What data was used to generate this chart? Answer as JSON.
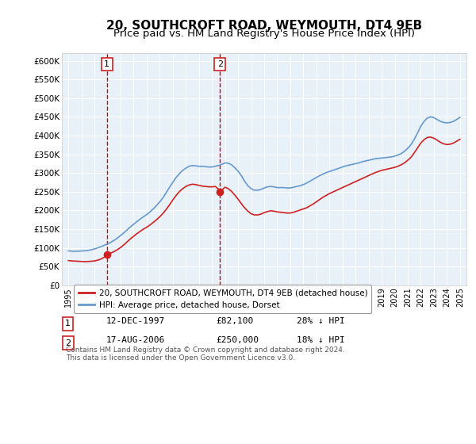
{
  "title": "20, SOUTHCROFT ROAD, WEYMOUTH, DT4 9EB",
  "subtitle": "Price paid vs. HM Land Registry's House Price Index (HPI)",
  "title_fontsize": 11,
  "subtitle_fontsize": 9.5,
  "ylabel": "",
  "xlabel": "",
  "ylim": [
    0,
    620000
  ],
  "yticks": [
    0,
    50000,
    100000,
    150000,
    200000,
    250000,
    300000,
    350000,
    400000,
    450000,
    500000,
    550000,
    600000
  ],
  "ytick_labels": [
    "£0",
    "£50K",
    "£100K",
    "£150K",
    "£200K",
    "£250K",
    "£300K",
    "£350K",
    "£400K",
    "£450K",
    "£500K",
    "£550K",
    "£600K"
  ],
  "xlim_start": 1994.5,
  "xlim_end": 2025.5,
  "xtick_years": [
    1995,
    1996,
    1997,
    1998,
    1999,
    2000,
    2001,
    2002,
    2003,
    2004,
    2005,
    2006,
    2007,
    2008,
    2009,
    2010,
    2011,
    2012,
    2013,
    2014,
    2015,
    2016,
    2017,
    2018,
    2019,
    2020,
    2021,
    2022,
    2023,
    2024,
    2025
  ],
  "hpi_color": "#6699cc",
  "price_color": "#cc2222",
  "vline_color": "#cc0000",
  "bg_color": "#e8f0f8",
  "grid_color": "#ffffff",
  "marker1_date_x": 1997.95,
  "marker1_y": 82100,
  "marker2_date_x": 2006.62,
  "marker2_y": 250000,
  "legend_entries": [
    "20, SOUTHCROFT ROAD, WEYMOUTH, DT4 9EB (detached house)",
    "HPI: Average price, detached house, Dorset"
  ],
  "footer_rows": [
    {
      "num": "1",
      "date": "12-DEC-1997",
      "price": "£82,100",
      "hpi": "28% ↓ HPI"
    },
    {
      "num": "2",
      "date": "17-AUG-2006",
      "price": "£250,000",
      "hpi": "18% ↓ HPI"
    }
  ],
  "footer_note": "Contains HM Land Registry data © Crown copyright and database right 2024.\nThis data is licensed under the Open Government Licence v3.0.",
  "hpi_x": [
    1995.0,
    1995.25,
    1995.5,
    1995.75,
    1996.0,
    1996.25,
    1996.5,
    1996.75,
    1997.0,
    1997.25,
    1997.5,
    1997.75,
    1998.0,
    1998.25,
    1998.5,
    1998.75,
    1999.0,
    1999.25,
    1999.5,
    1999.75,
    2000.0,
    2000.25,
    2000.5,
    2000.75,
    2001.0,
    2001.25,
    2001.5,
    2001.75,
    2002.0,
    2002.25,
    2002.5,
    2002.75,
    2003.0,
    2003.25,
    2003.5,
    2003.75,
    2004.0,
    2004.25,
    2004.5,
    2004.75,
    2005.0,
    2005.25,
    2005.5,
    2005.75,
    2006.0,
    2006.25,
    2006.5,
    2006.75,
    2007.0,
    2007.25,
    2007.5,
    2007.75,
    2008.0,
    2008.25,
    2008.5,
    2008.75,
    2009.0,
    2009.25,
    2009.5,
    2009.75,
    2010.0,
    2010.25,
    2010.5,
    2010.75,
    2011.0,
    2011.25,
    2011.5,
    2011.75,
    2012.0,
    2012.25,
    2012.5,
    2012.75,
    2013.0,
    2013.25,
    2013.5,
    2013.75,
    2014.0,
    2014.25,
    2014.5,
    2014.75,
    2015.0,
    2015.25,
    2015.5,
    2015.75,
    2016.0,
    2016.25,
    2016.5,
    2016.75,
    2017.0,
    2017.25,
    2017.5,
    2017.75,
    2018.0,
    2018.25,
    2018.5,
    2018.75,
    2019.0,
    2019.25,
    2019.5,
    2019.75,
    2020.0,
    2020.25,
    2020.5,
    2020.75,
    2021.0,
    2021.25,
    2021.5,
    2021.75,
    2022.0,
    2022.25,
    2022.5,
    2022.75,
    2023.0,
    2023.25,
    2023.5,
    2023.75,
    2024.0,
    2024.25,
    2024.5,
    2024.75,
    2025.0
  ],
  "hpi_y": [
    92000,
    91000,
    90500,
    91000,
    91500,
    92000,
    93000,
    95000,
    97000,
    100000,
    103000,
    107000,
    110000,
    115000,
    120000,
    126000,
    133000,
    140000,
    148000,
    156000,
    163000,
    170000,
    177000,
    183000,
    189000,
    196000,
    204000,
    213000,
    223000,
    234000,
    248000,
    262000,
    275000,
    288000,
    298000,
    307000,
    313000,
    318000,
    320000,
    319000,
    318000,
    318000,
    317000,
    316000,
    316000,
    318000,
    320000,
    323000,
    327000,
    326000,
    322000,
    314000,
    305000,
    293000,
    278000,
    266000,
    258000,
    254000,
    254000,
    256000,
    260000,
    263000,
    264000,
    263000,
    261000,
    261000,
    261000,
    260000,
    260000,
    262000,
    264000,
    266000,
    269000,
    273000,
    278000,
    283000,
    288000,
    293000,
    297000,
    301000,
    304000,
    307000,
    310000,
    313000,
    316000,
    319000,
    321000,
    323000,
    325000,
    327000,
    330000,
    332000,
    334000,
    336000,
    338000,
    339000,
    340000,
    341000,
    342000,
    343000,
    345000,
    348000,
    352000,
    358000,
    366000,
    376000,
    390000,
    407000,
    425000,
    438000,
    447000,
    450000,
    448000,
    443000,
    438000,
    435000,
    434000,
    435000,
    438000,
    443000,
    449000
  ],
  "red_x": [
    1995.0,
    1995.25,
    1995.5,
    1995.75,
    1996.0,
    1996.25,
    1996.5,
    1996.75,
    1997.0,
    1997.25,
    1997.5,
    1997.75,
    1997.95,
    1998.25,
    1998.5,
    1998.75,
    1999.0,
    1999.25,
    1999.5,
    1999.75,
    2000.0,
    2000.25,
    2000.5,
    2000.75,
    2001.0,
    2001.25,
    2001.5,
    2001.75,
    2002.0,
    2002.25,
    2002.5,
    2002.75,
    2003.0,
    2003.25,
    2003.5,
    2003.75,
    2004.0,
    2004.25,
    2004.5,
    2004.75,
    2005.0,
    2005.25,
    2005.5,
    2005.75,
    2006.0,
    2006.25,
    2006.5,
    2006.62,
    2007.0,
    2007.25,
    2007.5,
    2007.75,
    2008.0,
    2008.25,
    2008.5,
    2008.75,
    2009.0,
    2009.25,
    2009.5,
    2009.75,
    2010.0,
    2010.25,
    2010.5,
    2010.75,
    2011.0,
    2011.25,
    2011.5,
    2011.75,
    2012.0,
    2012.25,
    2012.5,
    2012.75,
    2013.0,
    2013.25,
    2013.5,
    2013.75,
    2014.0,
    2014.25,
    2014.5,
    2014.75,
    2015.0,
    2015.25,
    2015.5,
    2015.75,
    2016.0,
    2016.25,
    2016.5,
    2016.75,
    2017.0,
    2017.25,
    2017.5,
    2017.75,
    2018.0,
    2018.25,
    2018.5,
    2018.75,
    2019.0,
    2019.25,
    2019.5,
    2019.75,
    2020.0,
    2020.25,
    2020.5,
    2020.75,
    2021.0,
    2021.25,
    2021.5,
    2021.75,
    2022.0,
    2022.25,
    2022.5,
    2022.75,
    2023.0,
    2023.25,
    2023.5,
    2023.75,
    2024.0,
    2024.25,
    2024.5,
    2024.75,
    2025.0
  ],
  "red_y": [
    66000,
    65000,
    64500,
    64000,
    63500,
    63000,
    63500,
    64000,
    65000,
    67000,
    70000,
    75000,
    82100,
    86000,
    90000,
    95000,
    101000,
    108000,
    116000,
    124000,
    131000,
    138000,
    144000,
    150000,
    155000,
    161000,
    168000,
    175000,
    183000,
    192000,
    203000,
    215000,
    228000,
    240000,
    250000,
    258000,
    264000,
    268000,
    270000,
    269000,
    267000,
    265000,
    264000,
    263000,
    263000,
    264000,
    257000,
    250000,
    262000,
    258000,
    251000,
    241000,
    230000,
    218000,
    207000,
    198000,
    191000,
    188000,
    188000,
    190000,
    194000,
    197000,
    199000,
    198000,
    196000,
    195000,
    194000,
    193000,
    193000,
    195000,
    198000,
    201000,
    204000,
    207000,
    212000,
    217000,
    223000,
    229000,
    235000,
    240000,
    245000,
    249000,
    253000,
    257000,
    261000,
    265000,
    269000,
    273000,
    277000,
    281000,
    285000,
    289000,
    293000,
    297000,
    301000,
    304000,
    307000,
    309000,
    311000,
    313000,
    315000,
    318000,
    322000,
    327000,
    334000,
    342000,
    354000,
    367000,
    380000,
    389000,
    395000,
    396000,
    393000,
    388000,
    382000,
    378000,
    376000,
    377000,
    380000,
    385000,
    390000
  ]
}
